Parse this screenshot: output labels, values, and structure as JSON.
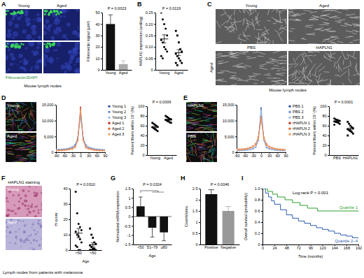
{
  "panels": [
    {
      "label": "A",
      "columns": [
        "Young",
        "Aged"
      ],
      "stain": "Fibronectin/DAPI",
      "caption": "Mouse lymph nodes"
    },
    {
      "label": "B"
    },
    {
      "label": "C",
      "columns": [
        "Young",
        "Aged"
      ],
      "row_labels": [
        "PBS",
        "HAPLN1"
      ],
      "side_label": "Aged",
      "caption": "Mouse lymph nodes"
    },
    {
      "label": "D",
      "rows": [
        "Young",
        "Aged"
      ]
    },
    {
      "label": "E",
      "rows": [
        "HAPLN1",
        "PBS"
      ]
    },
    {
      "label": "F",
      "title": "HAPLN1 staining",
      "rows": [
        "Young",
        "Aged"
      ],
      "caption": "Lymph nodes from patients with melanoma"
    },
    {
      "label": "G"
    },
    {
      "label": "H"
    },
    {
      "label": "I"
    }
  ],
  "chart_data": [
    {
      "type": "bar",
      "categories": [
        "Young",
        "Aged"
      ],
      "values": [
        40,
        5
      ],
      "errors": [
        8,
        3
      ],
      "colors": [
        "#111111",
        "#aaaaaa"
      ],
      "y_label": "Fibronectin signal (μm²)",
      "ylim": [
        0,
        50
      ],
      "yticks": [
        0,
        10,
        20,
        30,
        40,
        50
      ],
      "annotations": [
        "P = 0.0023"
      ]
    },
    {
      "type": "dot",
      "y_label": "HAPLN1 expression (antilog)",
      "ylim": [
        0,
        0.25
      ],
      "yticks": [
        0,
        0.05,
        {
          "value": 0.1,
          "label": "0.10"
        },
        0.15,
        {
          "value": 0.2,
          "label": "0.20"
        },
        0.25
      ],
      "annotations": [
        "P = 0.0119"
      ],
      "series": [
        {
          "name": "Young",
          "color": "#000000",
          "marker": "circle",
          "values": [
            0.25,
            0.22,
            0.2,
            0.18,
            0.15,
            0.13,
            0.12,
            0.1,
            0.09,
            0.08,
            0.06,
            0.05
          ],
          "mean": 0.135,
          "error": 0.018
        },
        {
          "name": "Aged",
          "color": "#000000",
          "marker": "square",
          "values": [
            0.17,
            0.15,
            0.12,
            0.09,
            0.08,
            0.07,
            0.06,
            0.05,
            0.04,
            0.03,
            0.03,
            0.02
          ],
          "mean": 0.075,
          "error": 0.013
        }
      ]
    },
    {
      "type": "line",
      "legend": "right",
      "x": [
        -90,
        -80,
        -70,
        -60,
        -50,
        -40,
        -30,
        -20,
        -10,
        0,
        10,
        20,
        30,
        40,
        50,
        60,
        70,
        80,
        90
      ],
      "xlim": [
        -90,
        90
      ],
      "xticks": [
        -90,
        -60,
        -30,
        0,
        30,
        60,
        90
      ],
      "ylim": [
        0,
        15000
      ],
      "yticks": [
        0,
        {
          "value": 5000,
          "label": "5,000"
        },
        {
          "value": 10000,
          "label": "10,000"
        },
        {
          "value": 15000,
          "label": "15,000"
        }
      ],
      "series": [
        {
          "name": "Young 1",
          "color": "#3b5ba9",
          "marker": "circle",
          "values": [
            700,
            750,
            800,
            900,
            1000,
            1200,
            1500,
            2100,
            4200,
            11800,
            4300,
            2000,
            1500,
            1200,
            1000,
            900,
            800,
            750,
            700
          ]
        },
        {
          "name": "Young 2",
          "color": "#6f8fcf",
          "marker": "circle",
          "values": [
            800,
            850,
            900,
            1000,
            1100,
            1300,
            1700,
            2400,
            4800,
            12600,
            4600,
            2300,
            1600,
            1300,
            1100,
            950,
            850,
            800,
            750
          ]
        },
        {
          "name": "Young 3",
          "color": "#a7bde3",
          "marker": "circle",
          "values": [
            600,
            650,
            700,
            800,
            900,
            1100,
            1400,
            1900,
            3900,
            11200,
            3800,
            1800,
            1400,
            1100,
            900,
            800,
            700,
            650,
            600
          ]
        },
        {
          "name": "Aged 1",
          "color": "#c0392b",
          "marker": "circle",
          "values": [
            500,
            550,
            600,
            650,
            750,
            900,
            1100,
            1600,
            3800,
            14200,
            3900,
            1500,
            1100,
            900,
            700,
            600,
            550,
            500,
            500
          ]
        },
        {
          "name": "Aged 2",
          "color": "#e0703a",
          "marker": "circle",
          "values": [
            550,
            600,
            650,
            700,
            800,
            950,
            1200,
            1700,
            4100,
            13600,
            4000,
            1600,
            1200,
            950,
            750,
            650,
            600,
            550,
            550
          ]
        },
        {
          "name": "Aged 3",
          "color": "#f0a868",
          "marker": "circle",
          "values": [
            450,
            500,
            550,
            600,
            700,
            850,
            1000,
            1500,
            3600,
            13000,
            3700,
            1400,
            1000,
            850,
            650,
            550,
            500,
            450,
            450
          ]
        }
      ]
    },
    {
      "type": "dot",
      "y_label": "Percent fibers within 15° (%)",
      "ylim": [
        0,
        100
      ],
      "yticks": [
        0,
        20,
        40,
        60,
        80,
        100
      ],
      "annotations": [
        "P = 0.0009"
      ],
      "series": [
        {
          "name": "Young",
          "color": "#000000",
          "marker": "circle",
          "values": [
            66,
            64,
            62,
            60,
            58,
            57,
            55,
            53,
            51,
            49
          ],
          "mean": 57,
          "error": 2
        },
        {
          "name": "Aged",
          "color": "#000000",
          "marker": "square",
          "values": [
            80,
            78,
            76,
            74,
            73,
            72,
            70,
            69,
            67,
            66
          ],
          "mean": 72,
          "error": 1.5
        }
      ]
    },
    {
      "type": "line",
      "legend": "right",
      "x": [
        -90,
        -80,
        -70,
        -60,
        -50,
        -40,
        -30,
        -20,
        -10,
        0,
        10,
        20,
        30,
        40,
        50,
        60,
        70,
        80,
        90
      ],
      "xlim": [
        -90,
        90
      ],
      "xticks": [
        -90,
        -60,
        -30,
        0,
        30,
        60,
        90
      ],
      "ylim": [
        0,
        15000
      ],
      "yticks": [
        0,
        {
          "value": 5000,
          "label": "5,000"
        },
        {
          "value": 10000,
          "label": "10,000"
        },
        {
          "value": 15000,
          "label": "15,000"
        }
      ],
      "series": [
        {
          "name": "PBS 1",
          "color": "#3b5ba9",
          "marker": "circle",
          "values": [
            500,
            550,
            600,
            650,
            750,
            900,
            1100,
            1600,
            3800,
            14000,
            3900,
            1500,
            1100,
            900,
            700,
            600,
            550,
            500,
            500
          ]
        },
        {
          "name": "PBS 2",
          "color": "#6f8fcf",
          "marker": "circle",
          "values": [
            550,
            600,
            650,
            700,
            800,
            950,
            1200,
            1700,
            4100,
            13400,
            4000,
            1600,
            1200,
            950,
            750,
            650,
            600,
            550,
            550
          ]
        },
        {
          "name": "PBS 3",
          "color": "#a7bde3",
          "marker": "circle",
          "values": [
            450,
            500,
            550,
            600,
            700,
            850,
            1000,
            1500,
            3600,
            12800,
            3700,
            1400,
            1000,
            850,
            650,
            550,
            500,
            450,
            450
          ]
        },
        {
          "name": "rHAPLN 1",
          "color": "#c0392b",
          "marker": "circle",
          "values": [
            800,
            850,
            900,
            1000,
            1150,
            1400,
            1800,
            2500,
            4600,
            11000,
            4500,
            2400,
            1700,
            1350,
            1100,
            950,
            850,
            800,
            800
          ]
        },
        {
          "name": "rHAPLN 2",
          "color": "#e0703a",
          "marker": "circle",
          "values": [
            900,
            950,
            1000,
            1100,
            1250,
            1500,
            1900,
            2700,
            4900,
            10400,
            4800,
            2600,
            1800,
            1450,
            1200,
            1050,
            950,
            900,
            900
          ]
        },
        {
          "name": "rHAPLN 3",
          "color": "#f0a868",
          "marker": "circle",
          "values": [
            750,
            800,
            850,
            950,
            1100,
            1300,
            1700,
            2300,
            4300,
            10800,
            4200,
            2200,
            1600,
            1250,
            1050,
            900,
            800,
            750,
            750
          ]
        }
      ]
    },
    {
      "type": "dot",
      "y_label": "Percent fibers within 15° (%)",
      "ylim": [
        0,
        100
      ],
      "yticks": [
        0,
        20,
        40,
        60,
        80,
        100
      ],
      "annotations": [
        "P = 0.0001"
      ],
      "series": [
        {
          "name": "PBS",
          "color": "#000000",
          "marker": "circle",
          "values": [
            75,
            73,
            72,
            71,
            70,
            69,
            68,
            67,
            66,
            64,
            62
          ],
          "mean": 69,
          "error": 1.2
        },
        {
          "name": "HAPLN1",
          "color": "#000000",
          "marker": "square",
          "values": [
            68,
            64,
            60,
            57,
            55,
            53,
            51,
            49,
            47,
            44,
            40
          ],
          "mean": 53,
          "error": 2.5
        }
      ]
    },
    {
      "type": "dot",
      "y_label": "H-score",
      "x_label": "Age",
      "ylim": [
        0,
        40
      ],
      "yticks": [
        0,
        10,
        20,
        30,
        40
      ],
      "annotations": [
        "P = 0.0310"
      ],
      "series": [
        {
          "name": "<50",
          "color": "#000000",
          "marker": "circle",
          "values": [
            38,
            24,
            17,
            15,
            13,
            12,
            10,
            9,
            7,
            5,
            3,
            2,
            0,
            0
          ],
          "mean": 11,
          "error": 3
        },
        {
          "name": ">50",
          "color": "#000000",
          "marker": "square",
          "values": [
            14,
            10,
            8,
            5,
            4,
            3,
            2,
            1,
            1,
            0,
            0,
            0,
            0,
            0
          ],
          "mean": 3.5,
          "error": 1.2
        }
      ]
    },
    {
      "type": "bar",
      "categories": [
        "<50",
        "51–79",
        "≥80"
      ],
      "values": [
        0.55,
        -0.6,
        -0.85
      ],
      "errors": [
        0.5,
        0.5,
        0.45
      ],
      "color": "#111111",
      "y_label": "Normalized mRNA expression",
      "x_label": "Age",
      "ylim": [
        -1.5,
        1.5
      ],
      "yticks": [
        -1.5,
        -1,
        -0.5,
        0,
        0.5,
        1,
        1.5
      ],
      "annotations": [
        "P = 0.0324"
      ]
    },
    {
      "type": "bar",
      "categories": [
        "Positive",
        "Negative"
      ],
      "values": [
        2.25,
        1.5
      ],
      "errors": [
        0.2,
        0.2
      ],
      "colors": [
        "#111111",
        "#999999"
      ],
      "y_label": "Counts/area",
      "ylim": [
        0,
        2.5
      ],
      "yticks": [
        0,
        0.5,
        1,
        1.5,
        2,
        2.5
      ],
      "annotations": [
        "P = 0.0046"
      ]
    },
    {
      "type": "line",
      "line_style": "step",
      "legend": "inline",
      "y_label": "Overall survival (probability)",
      "x_label": "Time (months)",
      "xlim": [
        0,
        192
      ],
      "xticks": [
        0,
        24,
        48,
        72,
        96,
        120,
        144,
        168,
        192
      ],
      "ylim": [
        0,
        1
      ],
      "yticks": [
        0,
        0.2,
        0.4,
        0.6,
        0.8,
        {
          "value": 1,
          "label": "1.0"
        }
      ],
      "annotations": [
        "Log-rank P < 0.001"
      ],
      "series": [
        {
          "name": "Quartile 1",
          "color": "#2ca02c",
          "x": [
            0,
            10,
            20,
            30,
            45,
            60,
            75,
            90,
            110,
            192
          ],
          "values": [
            1,
            0.95,
            0.9,
            0.85,
            0.8,
            0.75,
            0.7,
            0.65,
            0.6,
            0.6
          ]
        },
        {
          "name": "Quartile 2–4",
          "color": "#2b5cae",
          "x": [
            0,
            6,
            12,
            18,
            24,
            36,
            48,
            60,
            72,
            84,
            96,
            108,
            120,
            132,
            144,
            156,
            168,
            180,
            192
          ],
          "values": [
            1,
            0.92,
            0.85,
            0.78,
            0.72,
            0.62,
            0.53,
            0.47,
            0.42,
            0.38,
            0.34,
            0.3,
            0.27,
            0.24,
            0.2,
            0.17,
            0.15,
            0.12,
            0.12
          ]
        }
      ]
    }
  ]
}
